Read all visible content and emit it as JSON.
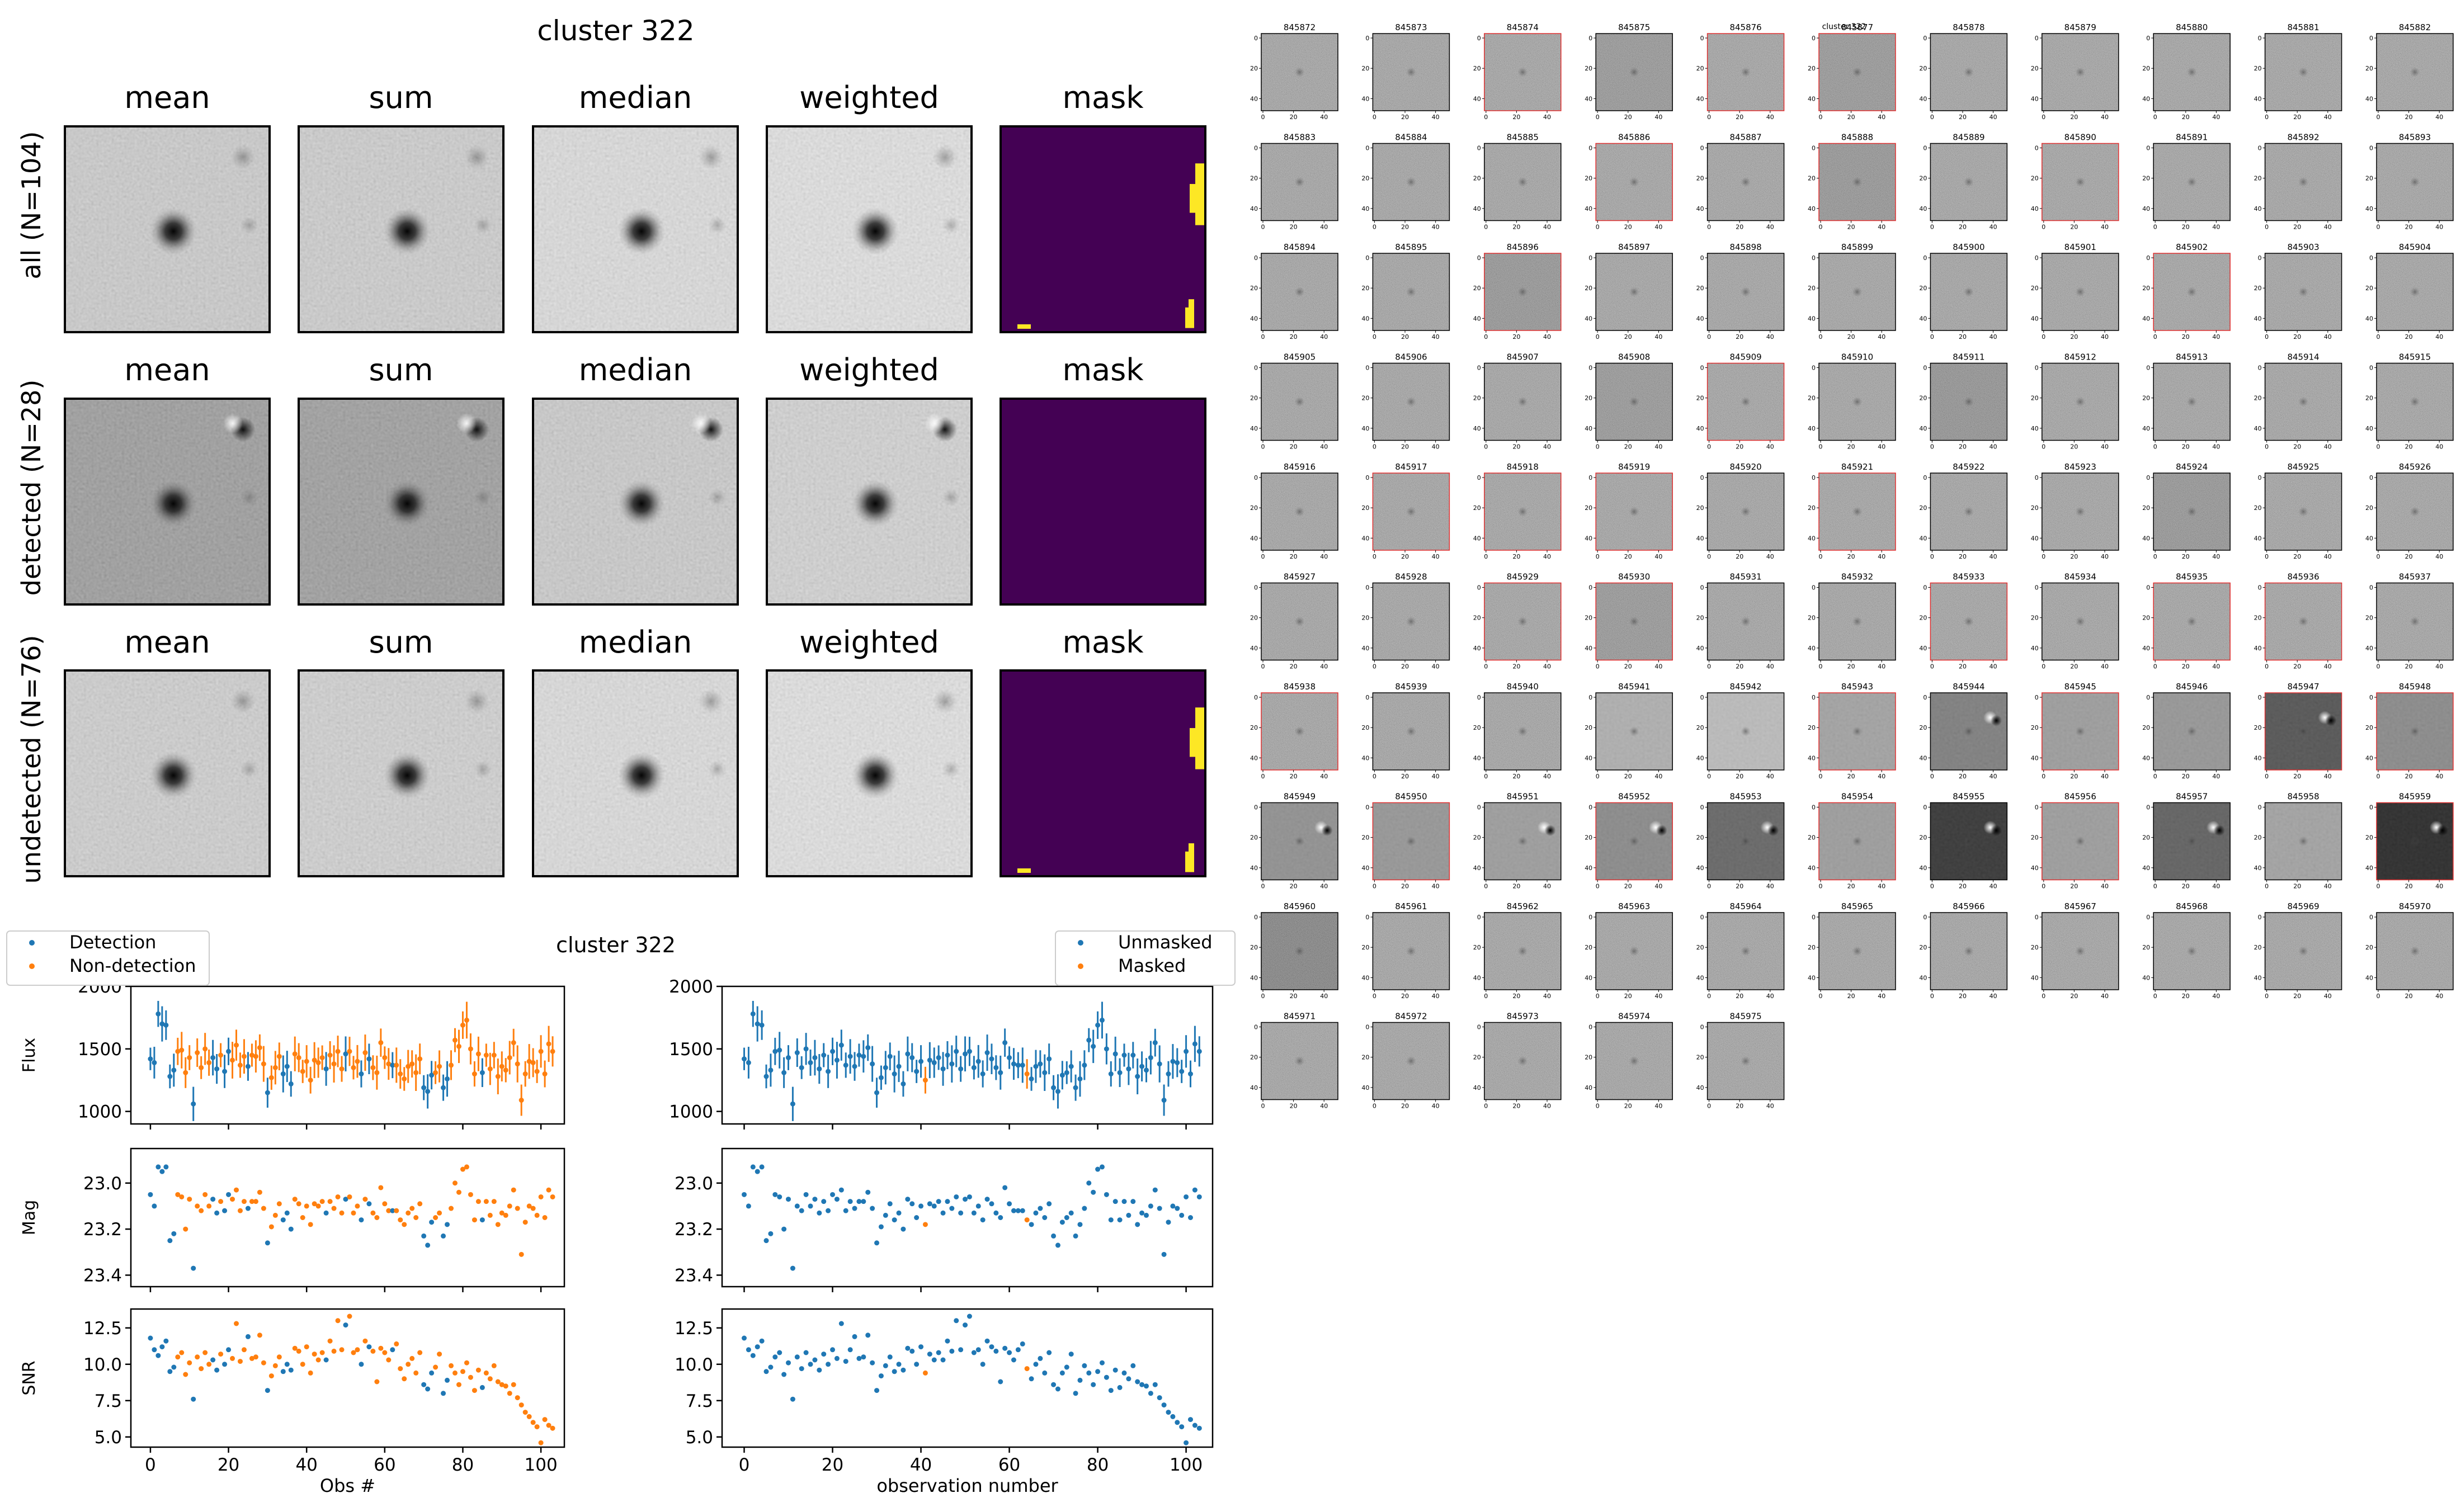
{
  "coadd_panel": {
    "title": "cluster 322",
    "column_labels": [
      "mean",
      "sum",
      "median",
      "weighted",
      "mask"
    ],
    "rows": [
      {
        "label": "all (N=104)",
        "mask_has_pixels": true,
        "bg": [
          206,
          208,
          226,
          232
        ]
      },
      {
        "label": "detected (N=28)",
        "mask_has_pixels": false,
        "bg": [
          150,
          152,
          205,
          214
        ]
      },
      {
        "label": "undetected (N=76)",
        "mask_has_pixels": true,
        "bg": [
          210,
          212,
          226,
          232
        ]
      }
    ],
    "mask_color": "#440154",
    "mask_highlight": "#fde725"
  },
  "lightcurve_title": "cluster 322",
  "chart_data": [
    {
      "type": "scatter",
      "panel": "left",
      "legend": [
        "Detection",
        "Non-detection"
      ],
      "legend_position": "upper-left",
      "colors": [
        "#1f77b4",
        "#ff7f0e"
      ],
      "xlabel": "Obs #",
      "xlim": [
        -5,
        106
      ],
      "xticks": [
        "0",
        "20",
        "40",
        "60",
        "80",
        "100"
      ],
      "subplots": [
        {
          "ylabel": "Flux",
          "ylim": [
            900,
            2000
          ],
          "yticks": [
            "1000",
            "1500",
            "2000"
          ],
          "inverted": false
        },
        {
          "ylabel": "Mag",
          "ylim": [
            23.45,
            22.85
          ],
          "yticks": [
            "23.0",
            "23.2",
            "23.4"
          ],
          "inverted": true
        },
        {
          "ylabel": "SNR",
          "ylim": [
            4.3,
            13.8
          ],
          "yticks": [
            "5.0",
            "7.5",
            "10.0",
            "12.5"
          ],
          "inverted": false
        }
      ],
      "detected_obs": [
        0,
        1,
        2,
        3,
        4,
        5,
        6,
        11,
        16,
        17,
        19,
        20,
        25,
        30,
        34,
        35,
        36,
        45,
        50,
        54,
        56,
        62,
        70,
        71,
        72,
        75,
        76,
        85
      ]
    },
    {
      "type": "scatter",
      "panel": "right",
      "legend": [
        "Unmasked",
        "Masked"
      ],
      "legend_position": "upper-right",
      "colors": [
        "#1f77b4",
        "#ff7f0e"
      ],
      "xlabel": "observation number",
      "xlim": [
        -5,
        106
      ],
      "xticks": [
        "0",
        "20",
        "40",
        "60",
        "80",
        "100"
      ],
      "subplots": [
        {
          "ylabel": "",
          "ylim": [
            900,
            2000
          ],
          "yticks": [
            "1000",
            "1500",
            "2000"
          ],
          "inverted": false
        },
        {
          "ylabel": "",
          "ylim": [
            23.45,
            22.85
          ],
          "yticks": [
            "23.0",
            "23.2",
            "23.4"
          ],
          "inverted": true
        },
        {
          "ylabel": "",
          "ylim": [
            4.3,
            13.8
          ],
          "yticks": [
            "5.0",
            "7.5",
            "10.0",
            "12.5"
          ],
          "inverted": false
        }
      ],
      "masked_obs": [
        41,
        64
      ]
    }
  ],
  "series_values": {
    "flux": [
      1420,
      1390,
      1780,
      1700,
      1690,
      1280,
      1330,
      1480,
      1490,
      1310,
      1430,
      1060,
      1470,
      1350,
      1500,
      1390,
      1430,
      1340,
      1450,
      1320,
      1480,
      1410,
      1530,
      1370,
      1440,
      1360,
      1450,
      1440,
      1510,
      1380,
      1150,
      1270,
      1350,
      1440,
      1300,
      1360,
      1220,
      1460,
      1430,
      1320,
      1400,
      1250,
      1410,
      1390,
      1430,
      1340,
      1450,
      1380,
      1480,
      1340,
      1460,
      1480,
      1350,
      1400,
      1300,
      1470,
      1420,
      1350,
      1310,
      1550,
      1430,
      1380,
      1370,
      1370,
      1300,
      1260,
      1360,
      1380,
      1310,
      1420,
      1190,
      1160,
      1290,
      1310,
      1360,
      1190,
      1260,
      1370,
      1570,
      1520,
      1690,
      1730,
      1500,
      1300,
      1460,
      1310,
      1450,
      1340,
      1450,
      1280,
      1360,
      1330,
      1430,
      1550,
      1380,
      1090,
      1300,
      1400,
      1390,
      1320,
      1480,
      1300,
      1540,
      1480
    ],
    "mag": [
      23.05,
      23.1,
      22.93,
      22.95,
      22.93,
      23.25,
      23.22,
      23.05,
      23.06,
      23.2,
      23.07,
      23.37,
      23.1,
      23.12,
      23.05,
      23.1,
      23.07,
      23.13,
      23.08,
      23.12,
      23.05,
      23.07,
      23.03,
      23.12,
      23.08,
      23.11,
      23.08,
      23.08,
      23.04,
      23.11,
      23.26,
      23.19,
      23.14,
      23.09,
      23.16,
      23.13,
      23.2,
      23.07,
      23.09,
      23.15,
      23.1,
      23.18,
      23.09,
      23.1,
      23.08,
      23.13,
      23.08,
      23.11,
      23.06,
      23.13,
      23.07,
      23.06,
      23.13,
      23.1,
      23.16,
      23.07,
      23.09,
      23.13,
      23.15,
      23.02,
      23.09,
      23.12,
      23.12,
      23.12,
      23.16,
      23.18,
      23.13,
      23.11,
      23.15,
      23.09,
      23.23,
      23.27,
      23.17,
      23.15,
      23.13,
      23.23,
      23.18,
      23.11,
      23.0,
      23.04,
      22.94,
      22.93,
      23.05,
      23.16,
      23.08,
      23.16,
      23.08,
      23.14,
      23.08,
      23.18,
      23.13,
      23.14,
      23.1,
      23.03,
      23.11,
      23.31,
      23.17,
      23.1,
      23.11,
      23.14,
      23.06,
      23.15,
      23.03,
      23.06
    ],
    "snr": [
      11.8,
      11.0,
      10.6,
      11.2,
      11.6,
      9.5,
      9.8,
      10.5,
      10.8,
      9.3,
      10.1,
      7.6,
      10.5,
      9.7,
      10.8,
      10.0,
      10.3,
      9.6,
      10.7,
      10.0,
      11.0,
      10.4,
      12.8,
      10.2,
      11.0,
      11.9,
      10.4,
      10.5,
      12.0,
      10.1,
      8.2,
      9.2,
      9.9,
      10.5,
      9.5,
      10.0,
      9.6,
      11.1,
      10.9,
      10.0,
      11.2,
      9.4,
      10.7,
      10.3,
      10.8,
      10.3,
      11.6,
      10.9,
      13.0,
      11.0,
      12.7,
      13.3,
      10.8,
      11.0,
      10.0,
      11.6,
      11.2,
      10.9,
      8.8,
      11.1,
      10.8,
      10.3,
      11.0,
      11.4,
      9.7,
      9.0,
      10.0,
      10.4,
      9.4,
      10.8,
      8.6,
      8.3,
      9.4,
      9.8,
      10.7,
      8.0,
      8.9,
      9.9,
      9.4,
      8.6,
      9.5,
      10.1,
      9.1,
      8.2,
      9.6,
      8.4,
      9.4,
      9.0,
      9.9,
      8.8,
      8.6,
      8.5,
      8.0,
      8.6,
      7.7,
      7.2,
      6.7,
      6.4,
      6.0,
      5.7,
      4.6,
      6.2,
      5.8,
      5.6
    ]
  },
  "cutout_grid": {
    "title": "cluster 322",
    "tick_labels_x": [
      "0",
      "20",
      "40"
    ],
    "tick_labels_y": [
      "0",
      "20",
      "40"
    ],
    "red_border_color": "#e03030",
    "ids": [
      "845872",
      "845873",
      "845874",
      "845875",
      "845876",
      "845877",
      "845878",
      "845879",
      "845880",
      "845881",
      "845882",
      "845883",
      "845884",
      "845885",
      "845886",
      "845887",
      "845888",
      "845889",
      "845890",
      "845891",
      "845892",
      "845893",
      "845894",
      "845895",
      "845896",
      "845897",
      "845898",
      "845899",
      "845900",
      "845901",
      "845902",
      "845903",
      "845904",
      "845905",
      "845906",
      "845907",
      "845908",
      "845909",
      "845910",
      "845911",
      "845912",
      "845913",
      "845914",
      "845915",
      "845916",
      "845917",
      "845918",
      "845919",
      "845920",
      "845921",
      "845922",
      "845923",
      "845924",
      "845925",
      "845926",
      "845927",
      "845928",
      "845929",
      "845930",
      "845931",
      "845932",
      "845933",
      "845934",
      "845935",
      "845936",
      "845937",
      "845938",
      "845939",
      "845940",
      "845941",
      "845942",
      "845943",
      "845944",
      "845945",
      "845946",
      "845947",
      "845948",
      "845949",
      "845950",
      "845951",
      "845952",
      "845953",
      "845954",
      "845955",
      "845956",
      "845957",
      "845958",
      "845959",
      "845960",
      "845961",
      "845962",
      "845963",
      "845964",
      "845965",
      "845966",
      "845967",
      "845968",
      "845969",
      "845970",
      "845971",
      "845972",
      "845973",
      "845974",
      "845975"
    ],
    "red_ids": [
      "845874",
      "845876",
      "845877",
      "845886",
      "845888",
      "845890",
      "845896",
      "845902",
      "845909",
      "845917",
      "845918",
      "845919",
      "845921",
      "845929",
      "845930",
      "845933",
      "845935",
      "845936",
      "845938",
      "845943",
      "845945",
      "845947",
      "845948",
      "845950",
      "845952",
      "845954",
      "845956",
      "845959"
    ],
    "tones": {
      "845875": 0.75,
      "845877": 0.75,
      "845888": 0.7,
      "845896": 0.7,
      "845908": 0.75,
      "845911": 0.65,
      "845924": 0.7,
      "845930": 0.75,
      "845941": 1.35,
      "845942": 1.45,
      "845943": 1.25,
      "845944": 0.95,
      "845945": 1.2,
      "845946": 1.15,
      "845947": 0.6,
      "845948": 1.05,
      "845949": 1.1,
      "845950": 1.15,
      "845951": 1.2,
      "845952": 1.05,
      "845953": 0.75,
      "845954": 1.2,
      "845955": 0.35,
      "845956": 1.2,
      "845957": 0.7,
      "845958": 1.25,
      "845959": 0.25,
      "845960": 0.35
    },
    "smooth_ids": [
      "845941",
      "845942",
      "845943",
      "845944",
      "845945",
      "845946",
      "845947",
      "845948",
      "845949",
      "845950",
      "845951",
      "845952",
      "845953",
      "845954",
      "845955",
      "845956",
      "845957",
      "845958",
      "845959"
    ],
    "blob_ids": [
      "845944",
      "845947",
      "845949",
      "845951",
      "845952",
      "845953",
      "845955",
      "845957",
      "845959"
    ]
  }
}
